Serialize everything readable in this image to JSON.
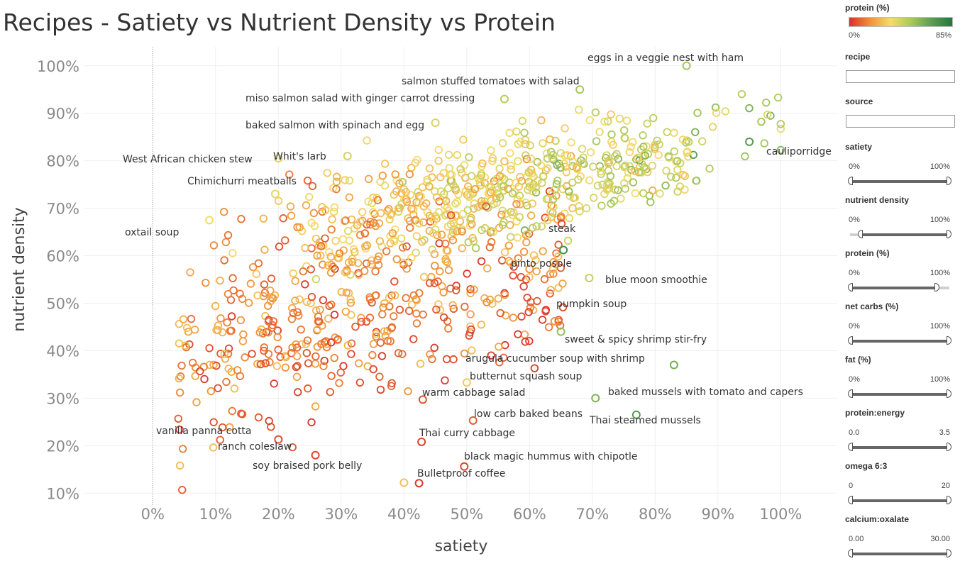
{
  "page": {
    "title": "Recipes - Satiety vs Nutrient Density vs Protein"
  },
  "chart_data": {
    "type": "scatter",
    "title": "Recipes - Satiety vs Nutrient Density vs Protein",
    "xlabel": "satiety",
    "ylabel": "nutrient density",
    "xlim": [
      -0.11,
      1.09
    ],
    "ylim": [
      0.075,
      1.04
    ],
    "x_ticks": [
      0,
      0.1,
      0.2,
      0.3,
      0.4,
      0.5,
      0.6,
      0.7,
      0.8,
      0.9,
      1.0
    ],
    "x_tick_labels": [
      "0%",
      "10%",
      "20%",
      "30%",
      "40%",
      "50%",
      "60%",
      "70%",
      "80%",
      "90%",
      "100%"
    ],
    "y_ticks": [
      0.1,
      0.2,
      0.3,
      0.4,
      0.5,
      0.6,
      0.7,
      0.8,
      0.9,
      1.0
    ],
    "y_tick_labels": [
      "10%",
      "20%",
      "30%",
      "40%",
      "50%",
      "60%",
      "70%",
      "80%",
      "90%",
      "100%"
    ],
    "grid": true,
    "marker": "hollow-circle",
    "color_by": "protein (%)",
    "color_scale": {
      "min": 0,
      "max": 0.85,
      "colors": [
        "#d7302a",
        "#f0913a",
        "#f6dc6a",
        "#a9c95c",
        "#5a9e50",
        "#1f7a3f"
      ]
    },
    "background_points": 1000,
    "points": [
      {
        "x": 0.85,
        "y": 1.0,
        "protein": 0.52,
        "label": "eggs in a veggie nest with ham"
      },
      {
        "x": 0.68,
        "y": 0.95,
        "protein": 0.52,
        "label": "salmon stuffed tomatoes with salad"
      },
      {
        "x": 0.56,
        "y": 0.93,
        "protein": 0.48,
        "label": "miso salmon salad with ginger carrot dressing"
      },
      {
        "x": 0.45,
        "y": 0.88,
        "protein": 0.4,
        "label": "baked salmon with spinach and egg"
      },
      {
        "x": 0.2,
        "y": 0.805,
        "protein": 0.4,
        "label": "West African chicken stew"
      },
      {
        "x": 0.31,
        "y": 0.81,
        "protein": 0.42,
        "label": "Whit's larb"
      },
      {
        "x": 0.195,
        "y": 0.73,
        "protein": 0.38,
        "label": "Chimichurri meatballs"
      },
      {
        "x": 0.95,
        "y": 0.84,
        "protein": 0.7,
        "label": "cauliporridge"
      },
      {
        "x": 0.09,
        "y": 0.675,
        "protein": 0.35,
        "label": "oxtail soup"
      },
      {
        "x": 0.654,
        "y": 0.612,
        "protein": 0.74,
        "label": "steak"
      },
      {
        "x": 0.6,
        "y": 0.572,
        "protein": 0.18,
        "label": "pinto posole"
      },
      {
        "x": 0.695,
        "y": 0.553,
        "protein": 0.45,
        "label": "blue moon smoothie"
      },
      {
        "x": 0.64,
        "y": 0.462,
        "protein": 0.18,
        "label": "pumpkin soup"
      },
      {
        "x": 0.65,
        "y": 0.44,
        "protein": 0.55,
        "label": "sweet & spicy shrimp stir-fry"
      },
      {
        "x": 0.83,
        "y": 0.37,
        "protein": 0.62,
        "label": "arugula cucumber soup with shrimp"
      },
      {
        "x": 0.5,
        "y": 0.333,
        "protein": 0.3,
        "label": "butternut squash soup"
      },
      {
        "x": 0.43,
        "y": 0.297,
        "protein": 0.06,
        "label": "warm cabbage salad"
      },
      {
        "x": 0.705,
        "y": 0.3,
        "protein": 0.6,
        "label": "baked mussels with tomato and capers"
      },
      {
        "x": 0.51,
        "y": 0.253,
        "protein": 0.08,
        "label": "low carb baked beans"
      },
      {
        "x": 0.77,
        "y": 0.265,
        "protein": 0.7,
        "label": "Thai steamed mussels"
      },
      {
        "x": 0.2,
        "y": 0.213,
        "protein": 0.05,
        "label": "vanilla panna cotta"
      },
      {
        "x": 0.428,
        "y": 0.208,
        "protein": 0.04,
        "label": "Thai curry cabbage"
      },
      {
        "x": 0.259,
        "y": 0.18,
        "protein": 0.04,
        "label": "ranch coleslaw"
      },
      {
        "x": 0.496,
        "y": 0.156,
        "protein": 0.04,
        "label": "black magic hummus with chipotle"
      },
      {
        "x": 0.4,
        "y": 0.122,
        "protein": 0.28,
        "label": "soy braised pork belly"
      },
      {
        "x": 0.424,
        "y": 0.121,
        "protein": 0.02,
        "label": "Bulletproof coffee"
      }
    ]
  },
  "controls": {
    "legend_title": "protein (%)",
    "legend_min": "0%",
    "legend_max": "85%",
    "recipe_label": "recipe",
    "recipe_value": "",
    "source_label": "source",
    "source_value": "",
    "sliders": [
      {
        "name": "satiety",
        "min_label": "0%",
        "max_label": "100%",
        "low": 0.0,
        "high": 1.0
      },
      {
        "name": "nutrient density",
        "min_label": "0%",
        "max_label": "100%",
        "low": 0.1,
        "high": 1.0
      },
      {
        "name": "protein (%)",
        "min_label": "0%",
        "max_label": "100%",
        "low": 0.0,
        "high": 0.88
      },
      {
        "name": "net carbs (%)",
        "min_label": "0%",
        "max_label": "100%",
        "low": 0.0,
        "high": 1.0
      },
      {
        "name": "fat (%)",
        "min_label": "0%",
        "max_label": "100%",
        "low": 0.0,
        "high": 1.0
      },
      {
        "name": "protein:energy",
        "min_label": "0.0",
        "max_label": "3.5",
        "low": 0.0,
        "high": 1.0
      },
      {
        "name": "omega 6:3",
        "min_label": "0",
        "max_label": "20",
        "low": 0.0,
        "high": 1.0
      },
      {
        "name": "calcium:oxalate",
        "min_label": "0.00",
        "max_label": "30.00",
        "low": 0.0,
        "high": 1.0
      }
    ]
  }
}
